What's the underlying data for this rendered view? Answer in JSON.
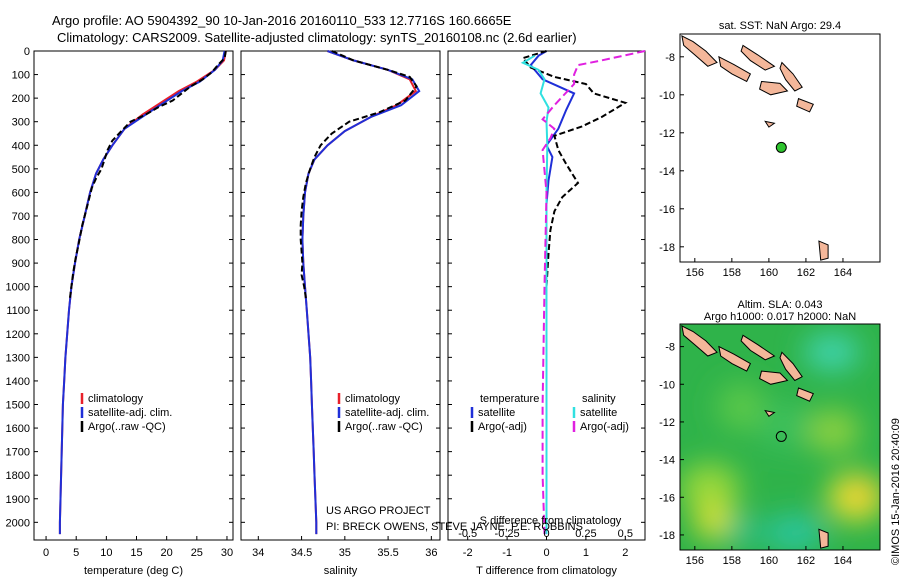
{
  "header": {
    "line1": "Argo profile: AO 5904392_90 10-Jan-2016 20160110_533 12.7716S 160.6665E",
    "line2": "Climatology: CARS2009. Satellite-adjusted climatology: synTS_20160108.nc (2.6d earlier)"
  },
  "credit": "©IMOS 15-Jan-2016 20:40:09",
  "colors": {
    "clim": "#e8202a",
    "sat": "#1f2fd8",
    "argo": "#000000",
    "sat_s": "#30e0e0",
    "argo_s": "#e020e0",
    "land": "#f4b79a",
    "argo_dot": "#2ec42e"
  },
  "chart_data": [
    {
      "type": "line",
      "xlabel": "temperature (deg C)",
      "ylabel": "",
      "xlim": [
        -2,
        31
      ],
      "ylim": [
        2075,
        0
      ],
      "xticks": [
        0,
        5,
        10,
        15,
        20,
        25,
        30
      ],
      "yticks": [
        0,
        100,
        200,
        300,
        400,
        500,
        600,
        700,
        800,
        900,
        1000,
        1100,
        1200,
        1300,
        1400,
        1500,
        1600,
        1700,
        1800,
        1900,
        2000
      ],
      "legend": [
        "climatology",
        "satellite-adj. clim.",
        "Argo(..raw -QC)"
      ],
      "legend_position": "lower-left",
      "series": [
        {
          "name": "climatology",
          "color": "clim",
          "dash": "",
          "points": [
            [
              29.8,
              0
            ],
            [
              29.5,
              40
            ],
            [
              28,
              80
            ],
            [
              25,
              130
            ],
            [
              22,
              170
            ],
            [
              19,
              220
            ],
            [
              16,
              270
            ],
            [
              13,
              330
            ],
            [
              11,
              400
            ],
            [
              9.5,
              460
            ],
            [
              8.3,
              520
            ],
            [
              7.3,
              600
            ],
            [
              6.4,
              700
            ],
            [
              5.5,
              800
            ],
            [
              4.8,
              900
            ],
            [
              4.2,
              1000
            ],
            [
              3.8,
              1100
            ],
            [
              3.5,
              1200
            ],
            [
              3.2,
              1300
            ],
            [
              3,
              1400
            ],
            [
              2.8,
              1500
            ],
            [
              2.7,
              1600
            ],
            [
              2.6,
              1700
            ],
            [
              2.5,
              1800
            ],
            [
              2.4,
              1900
            ],
            [
              2.3,
              2000
            ],
            [
              2.3,
              2050
            ]
          ]
        },
        {
          "name": "satellite-adj. clim.",
          "color": "sat",
          "dash": "",
          "points": [
            [
              29.6,
              0
            ],
            [
              29.3,
              40
            ],
            [
              28,
              80
            ],
            [
              25.5,
              130
            ],
            [
              22.5,
              170
            ],
            [
              19.5,
              220
            ],
            [
              16.5,
              270
            ],
            [
              13,
              330
            ],
            [
              11,
              400
            ],
            [
              9.5,
              460
            ],
            [
              8.3,
              520
            ],
            [
              7.3,
              600
            ],
            [
              6.4,
              700
            ],
            [
              5.5,
              800
            ],
            [
              4.8,
              900
            ],
            [
              4.2,
              1000
            ],
            [
              3.8,
              1100
            ],
            [
              3.5,
              1200
            ],
            [
              3.2,
              1300
            ],
            [
              3,
              1400
            ],
            [
              2.8,
              1500
            ],
            [
              2.7,
              1600
            ],
            [
              2.6,
              1700
            ],
            [
              2.5,
              1800
            ],
            [
              2.4,
              1900
            ],
            [
              2.3,
              2000
            ],
            [
              2.3,
              2050
            ]
          ]
        },
        {
          "name": "Argo(..raw -QC)",
          "color": "argo",
          "dash": "6,3",
          "points": [
            [
              29.8,
              0
            ],
            [
              29.6,
              30
            ],
            [
              28.5,
              60
            ],
            [
              27.5,
              90
            ],
            [
              26,
              120
            ],
            [
              24,
              150
            ],
            [
              22.5,
              180
            ],
            [
              21,
              210
            ],
            [
              18.5,
              240
            ],
            [
              16.5,
              270
            ],
            [
              14,
              300
            ],
            [
              12.5,
              340
            ],
            [
              11,
              380
            ],
            [
              10.2,
              420
            ],
            [
              9.7,
              460
            ],
            [
              9.2,
              500
            ],
            [
              8.3,
              540
            ],
            [
              7.6,
              580
            ],
            [
              7.2,
              620
            ],
            [
              6.6,
              680
            ],
            [
              6,
              740
            ],
            [
              5.4,
              820
            ],
            [
              4.9,
              880
            ],
            [
              4.5,
              940
            ],
            [
              4.2,
              1000
            ],
            [
              3.9,
              1060
            ]
          ]
        }
      ]
    },
    {
      "type": "line",
      "xlabel": "salinity",
      "ylabel": "",
      "xlim": [
        33.8,
        36.1
      ],
      "ylim": [
        2075,
        0
      ],
      "xticks": [
        34,
        34.5,
        35,
        35.5,
        36
      ],
      "legend": [
        "climatology",
        "satellite-adj. clim.",
        "Argo(..raw -QC)"
      ],
      "legend_position": "lower-left",
      "series": [
        {
          "name": "climatology",
          "color": "clim",
          "dash": "",
          "points": [
            [
              34.8,
              0
            ],
            [
              35.1,
              40
            ],
            [
              35.5,
              80
            ],
            [
              35.75,
              120
            ],
            [
              35.82,
              170
            ],
            [
              35.6,
              230
            ],
            [
              35.3,
              280
            ],
            [
              35,
              340
            ],
            [
              34.8,
              400
            ],
            [
              34.65,
              460
            ],
            [
              34.58,
              520
            ],
            [
              34.54,
              600
            ],
            [
              34.52,
              700
            ],
            [
              34.51,
              800
            ],
            [
              34.52,
              900
            ],
            [
              34.54,
              1000
            ],
            [
              34.56,
              1100
            ],
            [
              34.58,
              1200
            ],
            [
              34.6,
              1300
            ],
            [
              34.61,
              1400
            ],
            [
              34.62,
              1500
            ],
            [
              34.63,
              1600
            ],
            [
              34.64,
              1700
            ],
            [
              34.65,
              1800
            ],
            [
              34.66,
              1900
            ],
            [
              34.67,
              2000
            ],
            [
              34.67,
              2050
            ]
          ]
        },
        {
          "name": "satellite-adj. clim.",
          "color": "sat",
          "dash": "",
          "points": [
            [
              34.8,
              0
            ],
            [
              35.1,
              40
            ],
            [
              35.5,
              80
            ],
            [
              35.78,
              120
            ],
            [
              35.86,
              170
            ],
            [
              35.65,
              230
            ],
            [
              35.3,
              280
            ],
            [
              35,
              340
            ],
            [
              34.8,
              400
            ],
            [
              34.65,
              460
            ],
            [
              34.58,
              520
            ],
            [
              34.54,
              600
            ],
            [
              34.52,
              700
            ],
            [
              34.51,
              800
            ],
            [
              34.52,
              900
            ],
            [
              34.54,
              1000
            ],
            [
              34.56,
              1100
            ],
            [
              34.58,
              1200
            ],
            [
              34.6,
              1300
            ],
            [
              34.61,
              1400
            ],
            [
              34.62,
              1500
            ],
            [
              34.63,
              1600
            ],
            [
              34.64,
              1700
            ],
            [
              34.65,
              1800
            ],
            [
              34.66,
              1900
            ],
            [
              34.67,
              2000
            ],
            [
              34.67,
              2050
            ]
          ]
        },
        {
          "name": "Argo(..raw -QC)",
          "color": "argo",
          "dash": "6,3",
          "points": [
            [
              34.85,
              0
            ],
            [
              35.1,
              40
            ],
            [
              35.5,
              80
            ],
            [
              35.75,
              110
            ],
            [
              35.83,
              150
            ],
            [
              35.7,
              210
            ],
            [
              35.4,
              260
            ],
            [
              35.05,
              300
            ],
            [
              34.85,
              350
            ],
            [
              34.72,
              400
            ],
            [
              34.65,
              450
            ],
            [
              34.6,
              500
            ],
            [
              34.55,
              560
            ],
            [
              34.52,
              620
            ],
            [
              34.5,
              680
            ],
            [
              34.49,
              740
            ],
            [
              34.49,
              800
            ],
            [
              34.5,
              850
            ],
            [
              34.51,
              900
            ],
            [
              34.5,
              950
            ],
            [
              34.53,
              1000
            ],
            [
              34.55,
              1050
            ]
          ]
        }
      ]
    },
    {
      "type": "line",
      "xlabel": "T difference from climatology",
      "xlim": [
        -2.5,
        2.5
      ],
      "ylim": [
        2075,
        0
      ],
      "xticks": [
        -2,
        -1,
        0,
        1,
        2
      ],
      "top_axis_label": "S difference from climatology",
      "top_ticks": [
        "-0.5",
        "-0.25",
        "0",
        "0.25",
        "0.5"
      ],
      "top_tick_values": [
        -0.5,
        -0.25,
        0,
        0.25,
        0.5
      ],
      "legend_headers": [
        "temperature",
        "salinity"
      ],
      "legend": [
        "satellite",
        "Argo(-adj)",
        "satellite",
        "Argo(-adj)"
      ],
      "legend_position": "lower-center",
      "series": [
        {
          "name": "satellite",
          "color": "sat",
          "dash": "",
          "points": [
            [
              0,
              0
            ],
            [
              -0.2,
              20
            ],
            [
              -0.4,
              60
            ],
            [
              -0.1,
              120
            ],
            [
              0.7,
              180
            ],
            [
              0.5,
              250
            ],
            [
              0.3,
              330
            ],
            [
              0,
              400
            ],
            [
              0.15,
              450
            ],
            [
              0.05,
              550
            ],
            [
              0,
              650
            ],
            [
              0,
              800
            ],
            [
              0,
              1000
            ],
            [
              0,
              1500
            ],
            [
              0,
              2050
            ]
          ]
        },
        {
          "name": "Argo(-adj)",
          "color": "argo",
          "dash": "6,3",
          "points": [
            [
              0,
              0
            ],
            [
              -0.6,
              30
            ],
            [
              -0.4,
              70
            ],
            [
              0.2,
              110
            ],
            [
              1,
              140
            ],
            [
              1.2,
              180
            ],
            [
              2,
              220
            ],
            [
              1.4,
              280
            ],
            [
              0.9,
              320
            ],
            [
              0.2,
              360
            ],
            [
              0.3,
              420
            ],
            [
              0.5,
              480
            ],
            [
              0.8,
              560
            ],
            [
              0.4,
              620
            ],
            [
              0.2,
              680
            ],
            [
              0.1,
              760
            ],
            [
              0.05,
              860
            ],
            [
              0,
              1000
            ]
          ]
        },
        {
          "name": "satellite",
          "color": "sat_s",
          "dash": "",
          "points": [
            [
              -0.3,
              20
            ],
            [
              -0.6,
              50
            ],
            [
              -0.2,
              80
            ],
            [
              -0.05,
              120
            ],
            [
              -0.15,
              180
            ],
            [
              0.05,
              240
            ],
            [
              0,
              300
            ],
            [
              0.02,
              400
            ],
            [
              0,
              600
            ],
            [
              0,
              1000
            ],
            [
              0,
              1500
            ],
            [
              0,
              2050
            ]
          ]
        },
        {
          "name": "Argo(-adj)",
          "color": "argo_s",
          "dash": "8,4",
          "points": [
            [
              2.5,
              0
            ],
            [
              1.4,
              40
            ],
            [
              0.8,
              60
            ],
            [
              0.7,
              100
            ],
            [
              0.7,
              140
            ],
            [
              0.2,
              230
            ],
            [
              -0.1,
              290
            ],
            [
              0.2,
              330
            ],
            [
              0.1,
              370
            ],
            [
              -0.1,
              420
            ],
            [
              0,
              600
            ],
            [
              -0.05,
              1000
            ],
            [
              -0.1,
              1500
            ],
            [
              -0.1,
              1800
            ],
            [
              -0.05,
              2050
            ]
          ]
        }
      ]
    },
    {
      "type": "map",
      "title": "sat. SST: NaN Argo: 29.4",
      "xlim": [
        155.2,
        166
      ],
      "ylim": [
        -18.8,
        -6.8
      ],
      "xticks": [
        156,
        158,
        160,
        162,
        164
      ],
      "yticks": [
        -8,
        -10,
        -12,
        -14,
        -16,
        -18
      ],
      "argo_position": [
        160.67,
        -12.77
      ]
    },
    {
      "type": "heatmap",
      "title_line1": "Altim. SLA: 0.043",
      "title_line2": "Argo h1000: 0.017 h2000: NaN",
      "xlim": [
        155.2,
        166
      ],
      "ylim": [
        -18.8,
        -6.8
      ],
      "xticks": [
        156,
        158,
        160,
        162,
        164
      ],
      "yticks": [
        -8,
        -10,
        -12,
        -14,
        -16,
        -18
      ],
      "argo_position": [
        160.67,
        -12.77
      ]
    }
  ],
  "text_notes": {
    "project": "US ARGO PROJECT",
    "pi": "PI: BRECK OWENS, STEVE JAYNE, P.E. ROBBINS"
  }
}
